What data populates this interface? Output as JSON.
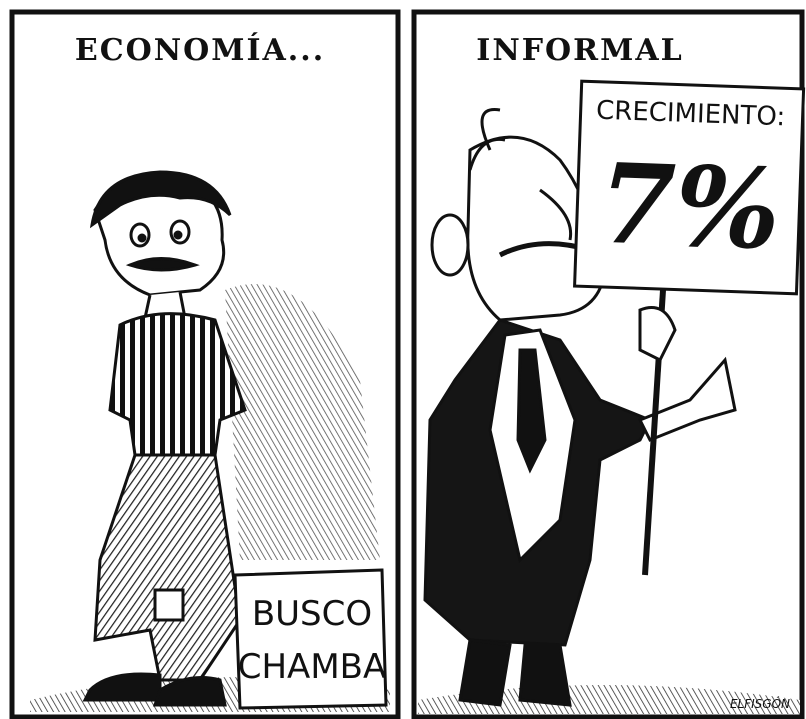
{
  "panels": [
    {
      "title": "ECONOMÍA...",
      "sign": {
        "lines": [
          "BUSCO",
          "CHAMBA"
        ]
      }
    },
    {
      "title": "INFORMAL",
      "sign": {
        "heading": "CRECIMIENTO:",
        "figure": "7%"
      },
      "signature": "ELFISGÓN"
    }
  ]
}
